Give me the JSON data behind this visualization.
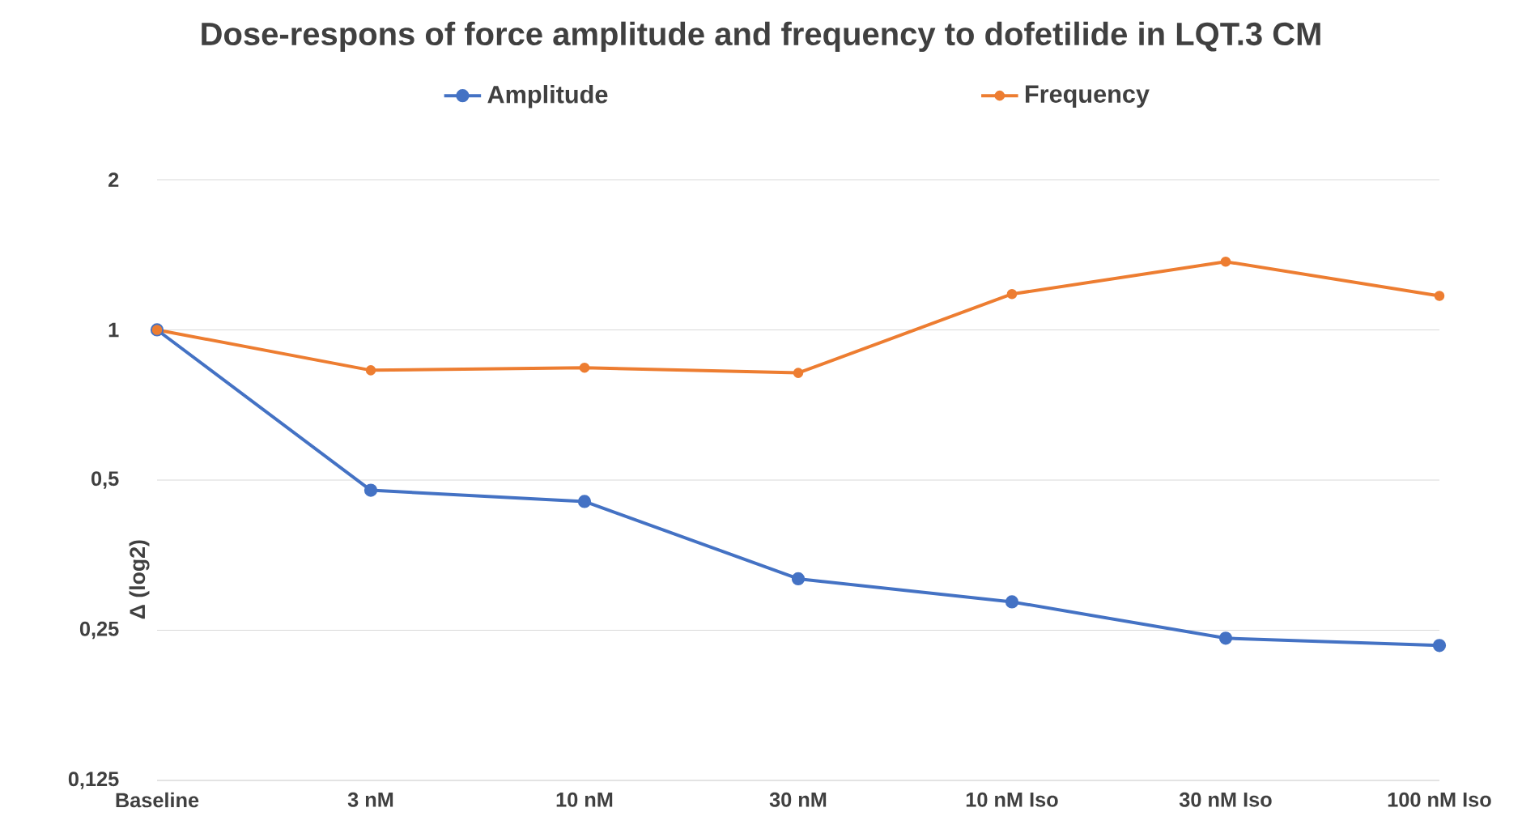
{
  "chart_data": {
    "type": "line",
    "title": "Dose-respons of force amplitude and frequency to dofetilide in LQT.3 CM",
    "ylabel": "Δ (log2)",
    "categories": [
      "Baseline",
      "3 nM",
      "10 nM",
      "30 nM",
      "10 nM Iso",
      "30 nM Iso",
      "100 nM Iso"
    ],
    "series": [
      {
        "name": "Amplitude",
        "color": "#4472c4",
        "values": [
          1,
          0.477,
          0.453,
          0.317,
          0.285,
          0.241,
          0.233
        ]
      },
      {
        "name": "Frequency",
        "color": "#ed7d31",
        "values": [
          1,
          0.83,
          0.84,
          0.82,
          1.18,
          1.37,
          1.17
        ]
      }
    ],
    "log": "y",
    "ylim": [
      0.125,
      2
    ],
    "yticks": [
      {
        "value": 0.125,
        "label": "0,125"
      },
      {
        "value": 0.25,
        "label": "0,25"
      },
      {
        "value": 0.5,
        "label": "0,5"
      },
      1,
      2
    ],
    "grid": "y",
    "legend": "top",
    "marker": "circle",
    "line_style": "solid"
  }
}
